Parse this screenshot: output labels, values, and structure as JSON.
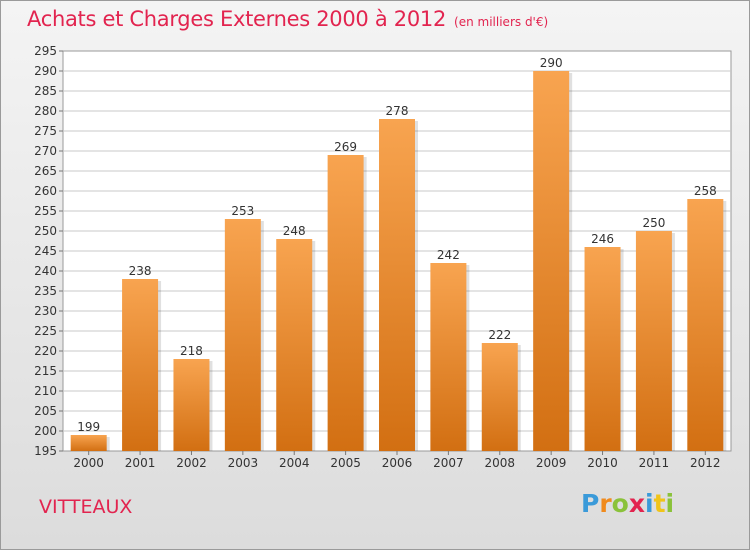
{
  "header": {
    "title": "Achats et Charges Externes 2000 à 2012",
    "unit": "(en milliers d'€)"
  },
  "footer": {
    "town": "VITTEAUX",
    "brand_letters": [
      "P",
      "r",
      "o",
      "x",
      "i",
      "t",
      "i"
    ],
    "brand_colors": [
      "#3a9ad9",
      "#f08a1c",
      "#8ac23a",
      "#e2244f",
      "#3a9ad9",
      "#f0c419",
      "#8ac23a"
    ]
  },
  "colors": {
    "accent": "#e2244f",
    "bar_top": "#f8a450",
    "bar_bottom": "#d26f12",
    "grid": "#c8c8c8"
  },
  "chart_data": {
    "type": "bar",
    "title": "Achats et Charges Externes 2000 à 2012",
    "subtitle": "(en milliers d'€)",
    "categories": [
      "2000",
      "2001",
      "2002",
      "2003",
      "2004",
      "2005",
      "2006",
      "2007",
      "2008",
      "2009",
      "2010",
      "2011",
      "2012"
    ],
    "values": [
      199,
      238,
      218,
      253,
      248,
      269,
      278,
      242,
      222,
      290,
      246,
      250,
      258
    ],
    "data_labels": [
      "199",
      "238",
      "218",
      "253",
      "248",
      "269",
      "278",
      "242",
      "222",
      "290",
      "246",
      "250",
      "258"
    ],
    "ylim": [
      195,
      295
    ],
    "y_ticks": [
      "195",
      "200",
      "205",
      "210",
      "215",
      "220",
      "225",
      "230",
      "235",
      "240",
      "245",
      "250",
      "255",
      "260",
      "265",
      "270",
      "275",
      "280",
      "285",
      "290",
      "295"
    ],
    "xlabel": "",
    "ylabel": "",
    "grid": true,
    "legend": "none"
  }
}
